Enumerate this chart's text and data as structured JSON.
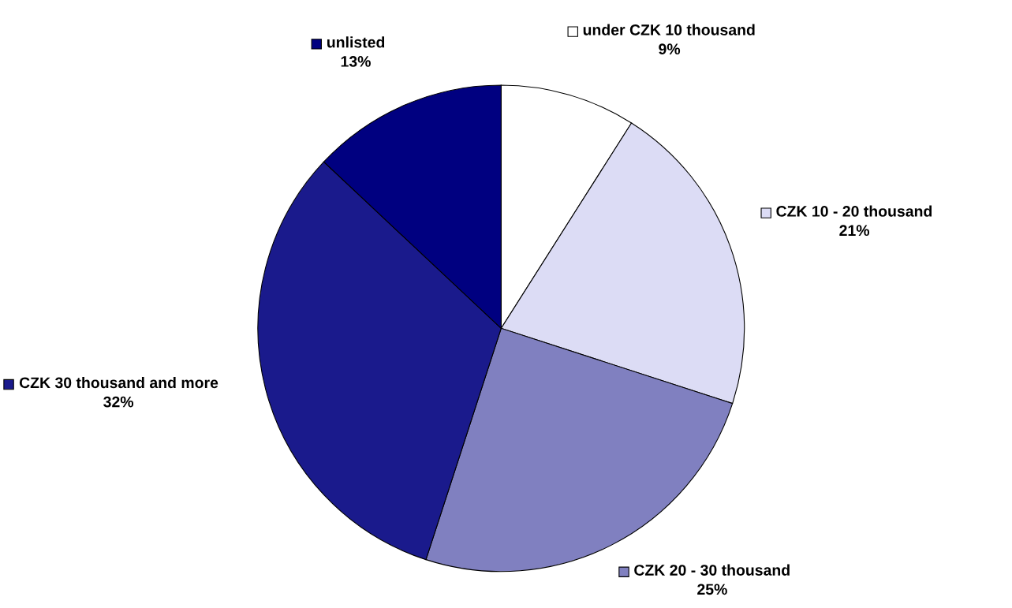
{
  "chart_data": {
    "type": "pie",
    "categories": [
      "under CZK 10 thousand",
      "CZK 10 - 20 thousand",
      "CZK 20 - 30 thousand",
      "CZK 30 thousand and more",
      "unlisted"
    ],
    "values": [
      9,
      21,
      25,
      32,
      13
    ],
    "colors": [
      "#ffffff",
      "#dcdcf5",
      "#8080c0",
      "#1a1a8c",
      "#000080"
    ],
    "value_labels": [
      "9%",
      "21%",
      "25%",
      "32%",
      "13%"
    ],
    "legend": true
  }
}
